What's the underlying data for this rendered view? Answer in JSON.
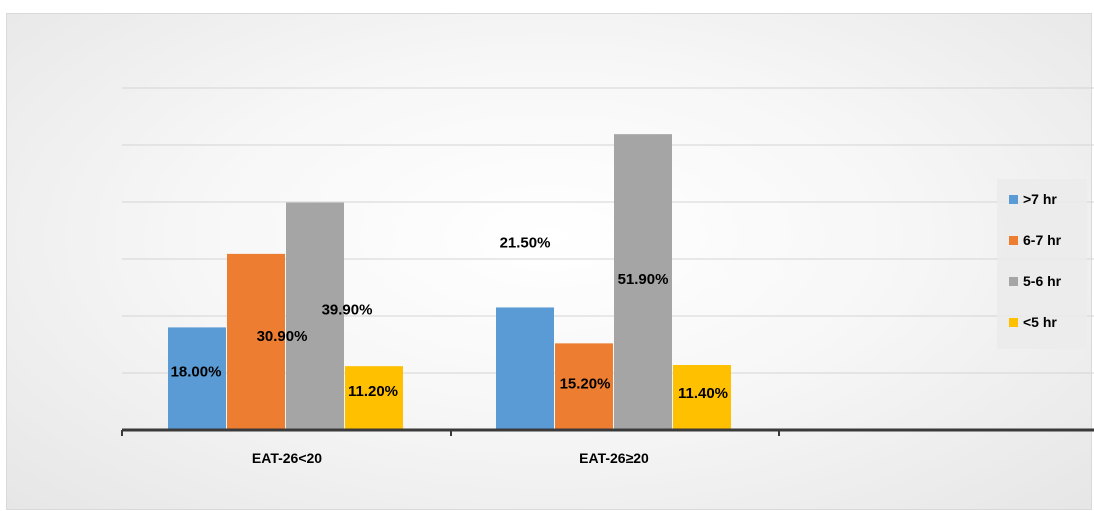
{
  "chart_data": {
    "type": "bar",
    "categories": [
      "EAT-26<20",
      "EAT-26≥20"
    ],
    "series": [
      {
        "name": ">7 hr",
        "values": [
          18.0,
          21.5
        ],
        "labels": [
          "18.00%",
          "21.50%"
        ],
        "color": "#5b9bd5"
      },
      {
        "name": "6-7 hr",
        "values": [
          30.9,
          15.2
        ],
        "labels": [
          "30.90%",
          "15.20%"
        ],
        "color": "#ed7d31"
      },
      {
        "name": "5-6 hr",
        "values": [
          39.9,
          51.9
        ],
        "labels": [
          "39.90%",
          "51.90%"
        ],
        "color": "#a5a5a5"
      },
      {
        "name": "<5 hr",
        "values": [
          11.2,
          11.4
        ],
        "labels": [
          "11.20%",
          "11.40%"
        ],
        "color": "#ffc000"
      }
    ],
    "ylim": [
      0,
      60
    ],
    "grid": true,
    "legend_position": "right",
    "title": "",
    "xlabel": "",
    "ylabel": ""
  }
}
